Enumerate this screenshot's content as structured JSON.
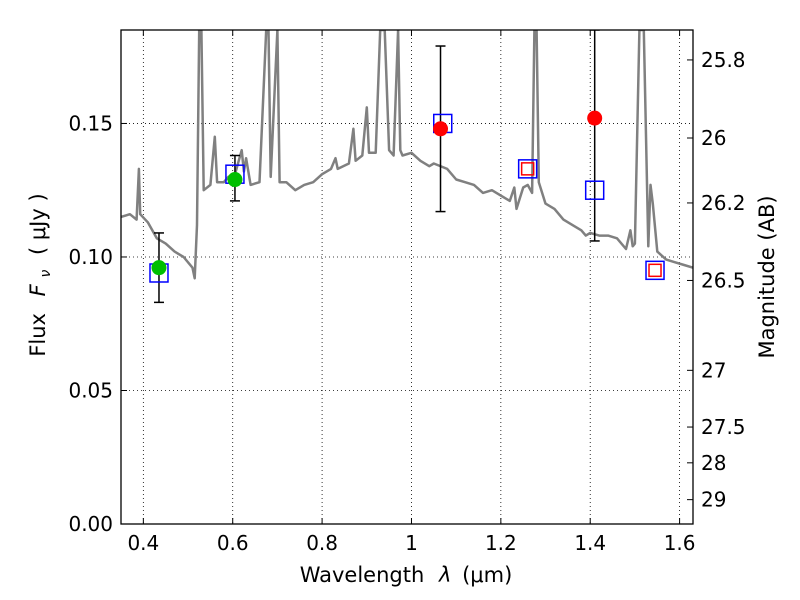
{
  "chart_data": {
    "type": "scatter",
    "x_axis": {
      "label_prefix": "Wavelength",
      "label_symbol": "λ",
      "label_unit": "(μm)",
      "range": [
        0.35,
        1.63
      ],
      "ticks": [
        0.4,
        0.6,
        0.8,
        1.0,
        1.2,
        1.4,
        1.6
      ],
      "tick_labels": [
        "0.4",
        "0.6",
        "0.8",
        "1",
        "1.2",
        "1.4",
        "1.6"
      ]
    },
    "y_axis": {
      "label_prefix": "Flux",
      "label_symbol": "F",
      "label_subscript": "ν",
      "label_unit": "( μJy )",
      "range": [
        0.0,
        0.185
      ],
      "ticks": [
        0.0,
        0.05,
        0.1,
        0.15
      ],
      "tick_labels": [
        "0.00",
        "0.05",
        "0.10",
        "0.15"
      ]
    },
    "y2_axis": {
      "label": "Magnitude (AB)",
      "ticks": [
        25.8,
        26.0,
        26.2,
        26.5,
        27.0,
        27.5,
        28.0,
        29.0
      ],
      "tick_labels": [
        "25.8",
        "26",
        "26.2",
        "26.5",
        "27",
        "27.5",
        "28",
        "29"
      ]
    },
    "grid": true,
    "series": [
      {
        "kind": "model_spectrum",
        "color": "#808080",
        "points": [
          [
            0.35,
            0.115
          ],
          [
            0.37,
            0.116
          ],
          [
            0.385,
            0.114
          ],
          [
            0.39,
            0.133
          ],
          [
            0.393,
            0.116
          ],
          [
            0.41,
            0.113
          ],
          [
            0.43,
            0.107
          ],
          [
            0.45,
            0.105
          ],
          [
            0.47,
            0.102
          ],
          [
            0.49,
            0.1
          ],
          [
            0.51,
            0.096
          ],
          [
            0.515,
            0.092
          ],
          [
            0.52,
            0.112
          ],
          [
            0.525,
            0.185
          ],
          [
            0.53,
            0.185
          ],
          [
            0.535,
            0.125
          ],
          [
            0.55,
            0.127
          ],
          [
            0.56,
            0.145
          ],
          [
            0.565,
            0.128
          ],
          [
            0.58,
            0.128
          ],
          [
            0.59,
            0.13
          ],
          [
            0.605,
            0.131
          ],
          [
            0.62,
            0.14
          ],
          [
            0.625,
            0.132
          ],
          [
            0.63,
            0.137
          ],
          [
            0.64,
            0.127
          ],
          [
            0.66,
            0.128
          ],
          [
            0.675,
            0.185
          ],
          [
            0.68,
            0.185
          ],
          [
            0.685,
            0.13
          ],
          [
            0.7,
            0.185
          ],
          [
            0.705,
            0.128
          ],
          [
            0.72,
            0.128
          ],
          [
            0.74,
            0.125
          ],
          [
            0.76,
            0.127
          ],
          [
            0.78,
            0.128
          ],
          [
            0.8,
            0.131
          ],
          [
            0.82,
            0.133
          ],
          [
            0.83,
            0.137
          ],
          [
            0.835,
            0.133
          ],
          [
            0.86,
            0.135
          ],
          [
            0.87,
            0.148
          ],
          [
            0.875,
            0.136
          ],
          [
            0.89,
            0.138
          ],
          [
            0.9,
            0.156
          ],
          [
            0.905,
            0.139
          ],
          [
            0.92,
            0.139
          ],
          [
            0.93,
            0.185
          ],
          [
            0.94,
            0.185
          ],
          [
            0.95,
            0.14
          ],
          [
            0.96,
            0.138
          ],
          [
            0.97,
            0.185
          ],
          [
            0.975,
            0.14
          ],
          [
            0.98,
            0.138
          ],
          [
            1.0,
            0.139
          ],
          [
            1.02,
            0.136
          ],
          [
            1.04,
            0.134
          ],
          [
            1.05,
            0.135
          ],
          [
            1.08,
            0.133
          ],
          [
            1.1,
            0.129
          ],
          [
            1.12,
            0.128
          ],
          [
            1.14,
            0.127
          ],
          [
            1.16,
            0.124
          ],
          [
            1.18,
            0.125
          ],
          [
            1.2,
            0.123
          ],
          [
            1.22,
            0.121
          ],
          [
            1.23,
            0.126
          ],
          [
            1.235,
            0.118
          ],
          [
            1.25,
            0.126
          ],
          [
            1.26,
            0.127
          ],
          [
            1.27,
            0.124
          ],
          [
            1.275,
            0.185
          ],
          [
            1.28,
            0.185
          ],
          [
            1.285,
            0.128
          ],
          [
            1.3,
            0.12
          ],
          [
            1.32,
            0.118
          ],
          [
            1.34,
            0.114
          ],
          [
            1.36,
            0.112
          ],
          [
            1.38,
            0.11
          ],
          [
            1.39,
            0.108
          ],
          [
            1.4,
            0.109
          ],
          [
            1.42,
            0.108
          ],
          [
            1.44,
            0.108
          ],
          [
            1.46,
            0.107
          ],
          [
            1.48,
            0.103
          ],
          [
            1.49,
            0.11
          ],
          [
            1.495,
            0.104
          ],
          [
            1.5,
            0.105
          ],
          [
            1.51,
            0.185
          ],
          [
            1.52,
            0.185
          ],
          [
            1.53,
            0.104
          ],
          [
            1.535,
            0.127
          ],
          [
            1.54,
            0.12
          ],
          [
            1.55,
            0.102
          ],
          [
            1.57,
            0.099
          ],
          [
            1.59,
            0.098
          ],
          [
            1.61,
            0.097
          ],
          [
            1.63,
            0.096
          ]
        ]
      },
      {
        "kind": "observed_detections",
        "marker": "circle",
        "points": [
          {
            "x": 0.435,
            "y": 0.096,
            "err_low": 0.083,
            "err_high": 0.109,
            "color": "#00bf00"
          },
          {
            "x": 0.605,
            "y": 0.129,
            "err_low": 0.121,
            "err_high": 0.138,
            "color": "#00bf00"
          },
          {
            "x": 1.065,
            "y": 0.148,
            "err_low": 0.117,
            "err_high": 0.179,
            "color": "#ff0000"
          },
          {
            "x": 1.41,
            "y": 0.152,
            "err_low": 0.106,
            "err_high": 0.185,
            "color": "#ff0000"
          }
        ]
      },
      {
        "kind": "model_band_flux",
        "marker": "square",
        "color": "#0000ff",
        "points": [
          {
            "x": 0.435,
            "y": 0.094
          },
          {
            "x": 0.605,
            "y": 0.131
          },
          {
            "x": 1.07,
            "y": 0.15
          },
          {
            "x": 1.26,
            "y": 0.133
          },
          {
            "x": 1.41,
            "y": 0.125
          },
          {
            "x": 1.545,
            "y": 0.095
          }
        ]
      },
      {
        "kind": "upper_limits",
        "marker": "square",
        "color": "#ff0000",
        "points": [
          {
            "x": 1.26,
            "y": 0.133
          },
          {
            "x": 1.545,
            "y": 0.095
          }
        ]
      }
    ]
  }
}
